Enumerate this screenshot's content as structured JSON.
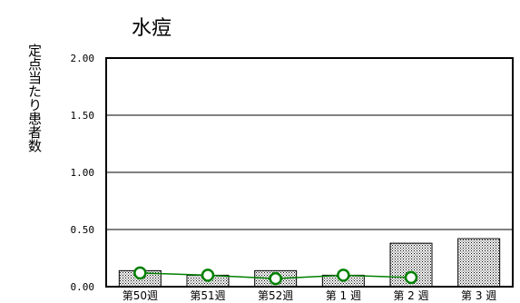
{
  "chart_data": {
    "type": "bar",
    "title": "水痘",
    "ylabel": "定点当たり患者数",
    "xlabel": "",
    "categories": [
      "第50週",
      "第51週",
      "第52週",
      "第 1 週",
      "第 2 週",
      "第 3 週"
    ],
    "ylim": [
      0,
      2.0
    ],
    "yticks": [
      "0.00",
      "0.50",
      "1.00",
      "1.50",
      "2.00"
    ],
    "grid": true,
    "series": [
      {
        "kind": "bar",
        "values": [
          0.14,
          0.1,
          0.14,
          0.1,
          0.38,
          0.42
        ]
      },
      {
        "kind": "line",
        "values": [
          0.12,
          0.1,
          0.07,
          0.1,
          0.08,
          null
        ]
      }
    ],
    "colors": {
      "bar_fill": "#ffffff",
      "bar_dots": "#000000",
      "line": "#008000",
      "marker": "#008000"
    }
  }
}
